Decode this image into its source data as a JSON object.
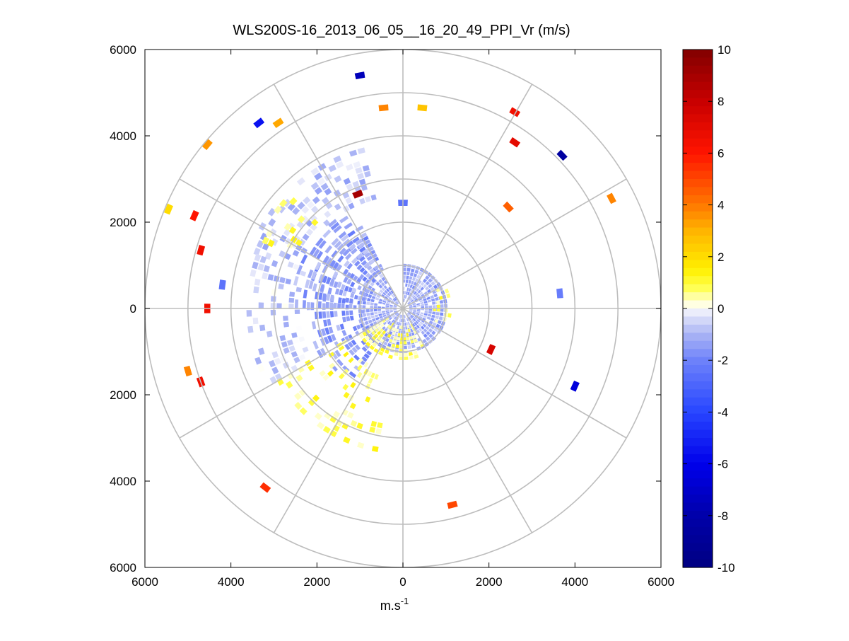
{
  "figure": {
    "title": "WLS200S-16_2013_06_05__16_20_49_PPI_Vr (m/s)",
    "xlabel_main": "m.s",
    "xlabel_sup": "-1"
  },
  "chart_data": {
    "type": "heatmap",
    "subtype": "polar-ppi",
    "title": "WLS200S-16_2013_06_05__16_20_49_PPI_Vr (m/s)",
    "xlabel": "m.s-1",
    "ylabel": "",
    "xlim": [
      -6000,
      6000
    ],
    "ylim": [
      -6000,
      6000
    ],
    "x_ticks": [
      -6000,
      -4000,
      -2000,
      0,
      2000,
      4000,
      6000
    ],
    "y_ticks": [
      -6000,
      -4000,
      -2000,
      0,
      2000,
      4000,
      6000
    ],
    "x_tick_labels": [
      "6000",
      "4000",
      "2000",
      "0",
      "2000",
      "4000",
      "6000"
    ],
    "y_tick_labels": [
      "6000",
      "4000",
      "2000",
      "0",
      "2000",
      "4000",
      "6000"
    ],
    "rings": [
      1000,
      2000,
      3000,
      4000,
      5000,
      6000
    ],
    "spokes_deg": [
      0,
      30,
      60,
      90,
      120,
      150,
      180,
      210,
      240,
      270,
      300,
      330
    ],
    "grid": true,
    "colorbar": {
      "min": -10,
      "max": 10,
      "ticks": [
        10,
        8,
        6,
        4,
        2,
        0,
        -2,
        -4,
        -6,
        -8,
        -10
      ],
      "tick_labels": [
        "10",
        "8",
        "6",
        "4",
        "2",
        "0",
        "-2",
        "-4",
        "-6",
        "-8",
        "-10"
      ],
      "placement": "right"
    },
    "clusters": [
      {
        "r0": 150,
        "r1": 1050,
        "a0": 0,
        "a1": 330,
        "v": -1.2,
        "dens": 0.9
      },
      {
        "r0": 900,
        "r1": 2200,
        "a0": 215,
        "a1": 330,
        "v": -1.5,
        "dens": 0.55
      },
      {
        "r0": 1000,
        "r1": 2600,
        "a0": 270,
        "a1": 330,
        "v": -1.3,
        "dens": 0.5
      },
      {
        "r0": 2600,
        "r1": 3800,
        "a0": 290,
        "a1": 345,
        "v": -0.8,
        "dens": 0.45
      },
      {
        "r0": 2400,
        "r1": 3600,
        "a0": 240,
        "a1": 290,
        "v": -0.6,
        "dens": 0.35
      },
      {
        "r0": 2700,
        "r1": 3400,
        "a0": 190,
        "a1": 240,
        "v": 0.7,
        "dens": 0.35
      },
      {
        "r0": 2800,
        "r1": 3700,
        "a0": 295,
        "a1": 315,
        "v": 0.7,
        "dens": 0.3
      },
      {
        "r0": 1500,
        "r1": 2500,
        "a0": 200,
        "a1": 240,
        "v": 0.7,
        "dens": 0.2
      },
      {
        "r0": 400,
        "r1": 1150,
        "a0": 150,
        "a1": 235,
        "v": 0.6,
        "dens": 0.6
      },
      {
        "r0": 700,
        "r1": 1150,
        "a0": 60,
        "a1": 110,
        "v": 0.6,
        "dens": 0.4
      }
    ],
    "segments": [
      {
        "x": -1000,
        "y": 5400,
        "v": -7.5
      },
      {
        "x": -450,
        "y": 4650,
        "v": 3.8
      },
      {
        "x": 450,
        "y": 4650,
        "v": 2.6
      },
      {
        "x": 2600,
        "y": 4550,
        "v": 6.5
      },
      {
        "x": 2600,
        "y": 3850,
        "v": 7.0
      },
      {
        "x": 3700,
        "y": 3550,
        "v": -8.5
      },
      {
        "x": -3350,
        "y": 4300,
        "v": -5.5
      },
      {
        "x": -2900,
        "y": 4300,
        "v": 3.2
      },
      {
        "x": -4550,
        "y": 3800,
        "v": 3.5
      },
      {
        "x": -5450,
        "y": 2300,
        "v": 2.0
      },
      {
        "x": -4850,
        "y": 2150,
        "v": 6.0
      },
      {
        "x": -4700,
        "y": 1350,
        "v": 6.5
      },
      {
        "x": -4550,
        "y": 0,
        "v": 6.5
      },
      {
        "x": -5000,
        "y": -1450,
        "v": 3.8
      },
      {
        "x": -4700,
        "y": -1700,
        "v": 6.5
      },
      {
        "x": -3200,
        "y": -4150,
        "v": 5.5
      },
      {
        "x": 1150,
        "y": -4550,
        "v": 5.0
      },
      {
        "x": 4000,
        "y": -1800,
        "v": -6.5
      },
      {
        "x": 4850,
        "y": 2550,
        "v": 3.8
      },
      {
        "x": 2450,
        "y": 2350,
        "v": 4.5
      },
      {
        "x": 2050,
        "y": -950,
        "v": 7.5
      },
      {
        "x": -1050,
        "y": 2650,
        "v": 9.0
      },
      {
        "x": 0,
        "y": 2450,
        "v": -2.5
      },
      {
        "x": 3650,
        "y": 350,
        "v": -2.2
      },
      {
        "x": -4200,
        "y": 550,
        "v": -2.5
      }
    ]
  },
  "colors": {
    "grid": "#bdbdbd",
    "axes": "#000000",
    "background": "#ffffff"
  }
}
